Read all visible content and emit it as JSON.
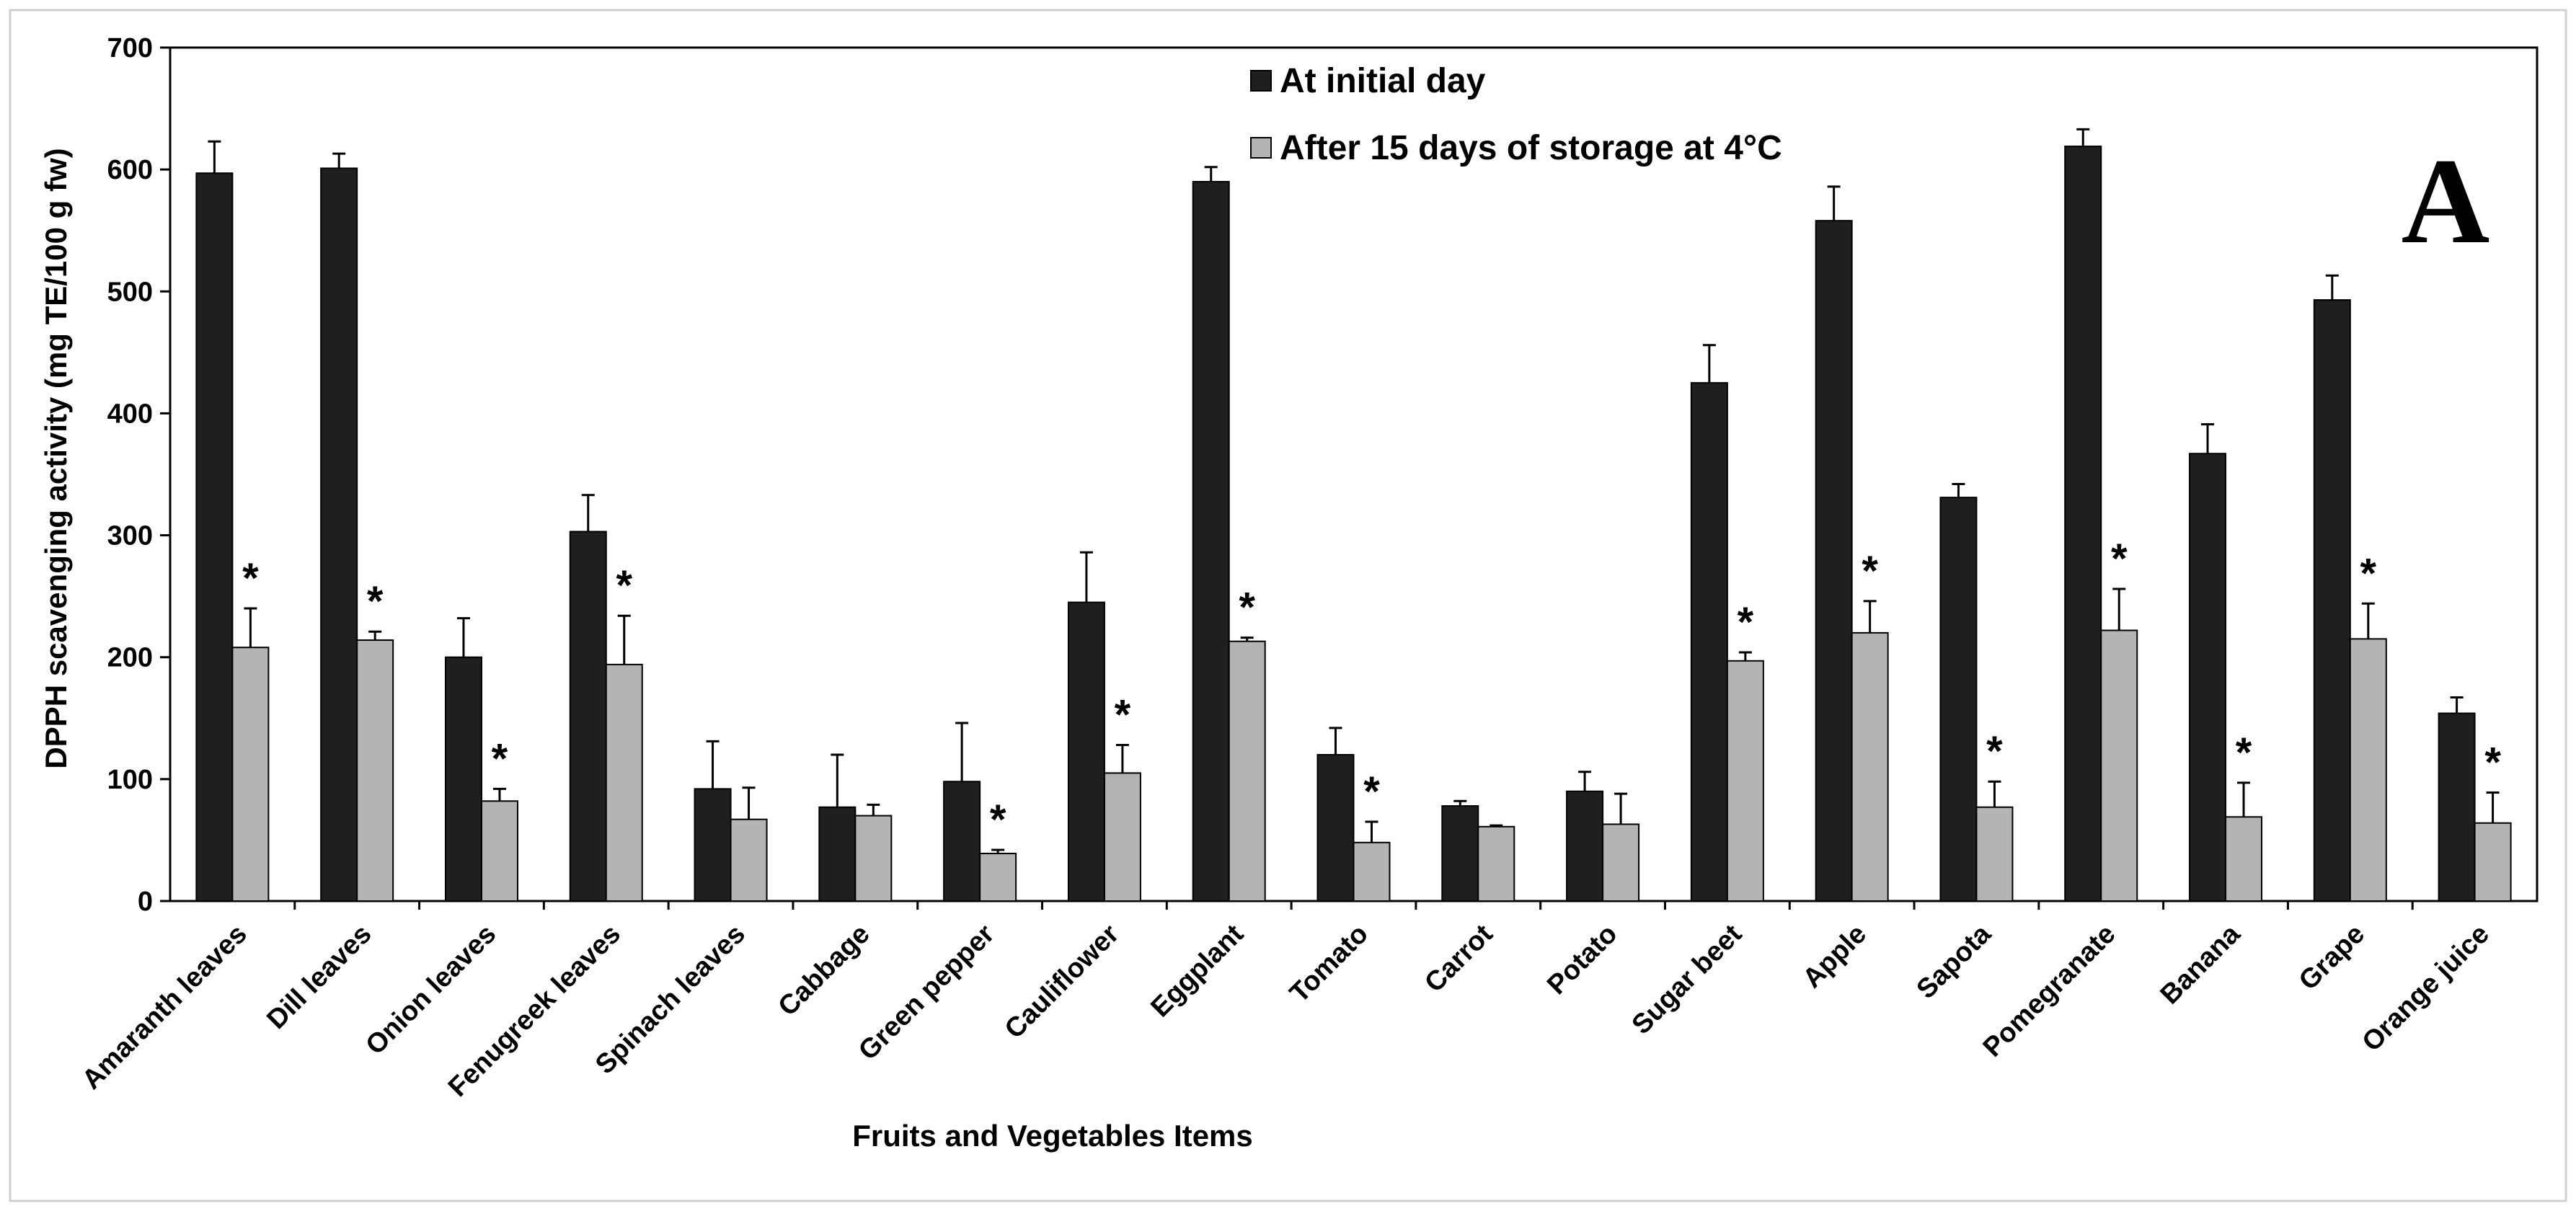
{
  "colors": {
    "series_initial": "#1f1f1f",
    "series_storage": "#b4b4b4",
    "axis": "#000000",
    "frame": "#d0d0d0",
    "background": "#ffffff"
  },
  "chart_data": {
    "type": "bar",
    "title": "",
    "panel_label": "A",
    "xlabel": "Fruits and Vegetables Items",
    "ylabel": "DPPH scavenging activity (mg TE/100 g fw)",
    "ylim": [
      0,
      700
    ],
    "yticks": [
      0,
      100,
      200,
      300,
      400,
      500,
      600,
      700
    ],
    "grid": false,
    "legend_position": "top-center",
    "significance_marker": "*",
    "categories": [
      "Amaranth leaves",
      "Dill leaves",
      "Onion leaves",
      "Fenugreek leaves",
      "Spinach leaves",
      "Cabbage",
      "Green pepper",
      "Cauliflower",
      "Eggplant",
      "Tomato",
      "Carrot",
      "Potato",
      "Sugar beet",
      "Apple",
      "Sapota",
      "Pomegranate",
      "Banana",
      "Grape",
      "Orange juice"
    ],
    "series": [
      {
        "name": "At initial day",
        "values": [
          597,
          601,
          200,
          303,
          92,
          77,
          98,
          245,
          590,
          120,
          78,
          90,
          425,
          558,
          331,
          619,
          367,
          493,
          154
        ],
        "errors": [
          26,
          12,
          32,
          30,
          39,
          43,
          48,
          41,
          12,
          22,
          4,
          16,
          31,
          28,
          11,
          14,
          24,
          20,
          13
        ],
        "significant": []
      },
      {
        "name": "After 15 days of storage at 4°C",
        "values": [
          208,
          214,
          82,
          194,
          67,
          70,
          39,
          105,
          213,
          48,
          61,
          63,
          197,
          220,
          77,
          222,
          69,
          215,
          64
        ],
        "errors": [
          32,
          7,
          10,
          40,
          26,
          9,
          3,
          23,
          3,
          17,
          1,
          25,
          7,
          26,
          21,
          34,
          28,
          29,
          25
        ],
        "significant": [
          true,
          true,
          true,
          true,
          false,
          false,
          true,
          true,
          true,
          true,
          false,
          false,
          true,
          true,
          true,
          true,
          true,
          true,
          true
        ]
      }
    ]
  }
}
